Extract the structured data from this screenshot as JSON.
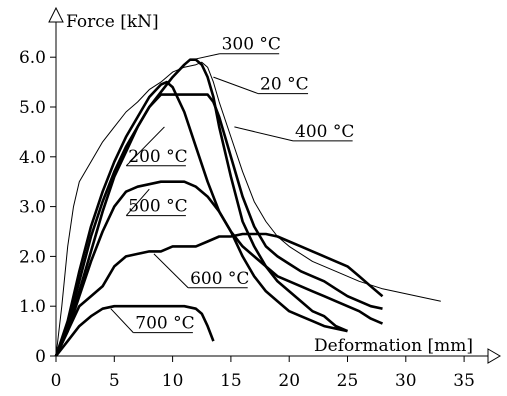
{
  "chart_data": {
    "type": "line",
    "title": "",
    "ylabel": "Force [kN]",
    "xlabel": "Deformation [mm]",
    "xlim": [
      0,
      35
    ],
    "ylim": [
      0,
      6.0
    ],
    "x_ticks": [
      0,
      5,
      10,
      15,
      20,
      25,
      30,
      35
    ],
    "y_ticks": [
      0,
      1.0,
      2.0,
      3.0,
      4.0,
      5.0,
      6.0
    ],
    "y_tick_labels": [
      "0",
      "1.0",
      "2.0",
      "3.0",
      "4.0",
      "5.0",
      "6.0"
    ],
    "grid": false,
    "series": [
      {
        "name": "20 °C",
        "stroke": "thin",
        "x": [
          0,
          0.5,
          1,
          1.5,
          2,
          3,
          4,
          5,
          6,
          7,
          8,
          9,
          10,
          11,
          12,
          12.5,
          13,
          13.5,
          14,
          15,
          16,
          17,
          18,
          19,
          20,
          22,
          24,
          26,
          28,
          30,
          32,
          33
        ],
        "y": [
          0,
          1.0,
          2.2,
          3.0,
          3.5,
          3.9,
          4.3,
          4.6,
          4.9,
          5.1,
          5.35,
          5.5,
          5.7,
          5.8,
          5.85,
          5.9,
          5.8,
          5.5,
          5.1,
          4.4,
          3.7,
          3.1,
          2.7,
          2.4,
          2.2,
          1.9,
          1.7,
          1.5,
          1.35,
          1.25,
          1.15,
          1.1
        ]
      },
      {
        "name": "300 °C",
        "stroke": "thick",
        "x": [
          0,
          1,
          2,
          3,
          4,
          5,
          6,
          7,
          8,
          9,
          10,
          11,
          11.5,
          12,
          12.5,
          13,
          13.5,
          14,
          15,
          16,
          17,
          18,
          19,
          20,
          21,
          22,
          23,
          24,
          25
        ],
        "y": [
          0,
          0.6,
          1.5,
          2.4,
          3.1,
          3.7,
          4.2,
          4.6,
          5.0,
          5.3,
          5.6,
          5.85,
          5.95,
          5.95,
          5.85,
          5.6,
          5.2,
          4.6,
          3.6,
          2.7,
          2.2,
          1.8,
          1.5,
          1.3,
          1.1,
          0.9,
          0.8,
          0.6,
          0.5
        ]
      },
      {
        "name": "400 °C",
        "stroke": "thick",
        "x": [
          0,
          1,
          2,
          3,
          4,
          5,
          6,
          7,
          8,
          9,
          10,
          11,
          12,
          13,
          13.5,
          14,
          14.5,
          15,
          16,
          17,
          18,
          19,
          20,
          21,
          22,
          23,
          24,
          25,
          26,
          27,
          28
        ],
        "y": [
          0,
          0.5,
          1.3,
          2.1,
          2.9,
          3.6,
          4.1,
          4.6,
          5.0,
          5.25,
          5.25,
          5.25,
          5.25,
          5.25,
          5.1,
          4.8,
          4.4,
          4.0,
          3.2,
          2.6,
          2.2,
          2.0,
          1.85,
          1.7,
          1.6,
          1.5,
          1.35,
          1.2,
          1.1,
          1.0,
          0.95
        ]
      },
      {
        "name": "200 °C",
        "stroke": "thick",
        "x": [
          0,
          1,
          2,
          3,
          4,
          5,
          6,
          7,
          8,
          9,
          9.5,
          10,
          11,
          12,
          13,
          14,
          15,
          16,
          17,
          18,
          19,
          20,
          21,
          22,
          23,
          24,
          25,
          26,
          27,
          28
        ],
        "y": [
          0,
          0.7,
          1.7,
          2.6,
          3.3,
          3.9,
          4.4,
          4.8,
          5.2,
          5.45,
          5.5,
          5.4,
          4.9,
          4.2,
          3.5,
          2.9,
          2.5,
          2.2,
          2.0,
          1.8,
          1.6,
          1.5,
          1.4,
          1.3,
          1.2,
          1.1,
          1.0,
          0.9,
          0.75,
          0.65
        ]
      },
      {
        "name": "500 °C",
        "stroke": "thick",
        "x": [
          0,
          1,
          2,
          3,
          4,
          5,
          6,
          7,
          8,
          9,
          10,
          11,
          12,
          13,
          14,
          15,
          16,
          17,
          18,
          19,
          20,
          21,
          22,
          23,
          24,
          25
        ],
        "y": [
          0,
          0.5,
          1.2,
          1.9,
          2.5,
          3.0,
          3.3,
          3.4,
          3.45,
          3.5,
          3.5,
          3.5,
          3.4,
          3.2,
          2.9,
          2.5,
          2.0,
          1.6,
          1.3,
          1.1,
          0.9,
          0.8,
          0.7,
          0.6,
          0.55,
          0.5
        ]
      },
      {
        "name": "600 °C",
        "stroke": "thick",
        "x": [
          0,
          1,
          2,
          3,
          4,
          5,
          6,
          7,
          8,
          9,
          10,
          11,
          12,
          13,
          14,
          15,
          16,
          17,
          18,
          19,
          20,
          21,
          22,
          23,
          24,
          25,
          26,
          27,
          28
        ],
        "y": [
          0,
          0.5,
          1.0,
          1.2,
          1.4,
          1.8,
          2.0,
          2.05,
          2.1,
          2.1,
          2.2,
          2.2,
          2.2,
          2.3,
          2.4,
          2.4,
          2.45,
          2.45,
          2.45,
          2.4,
          2.3,
          2.2,
          2.1,
          2.0,
          1.9,
          1.8,
          1.6,
          1.4,
          1.2
        ]
      },
      {
        "name": "700 °C",
        "stroke": "thick",
        "x": [
          0,
          1,
          2,
          3,
          4,
          5,
          6,
          7,
          8,
          9,
          10,
          11,
          12,
          12.5,
          13,
          13.5
        ],
        "y": [
          0,
          0.3,
          0.6,
          0.8,
          0.95,
          1.0,
          1.0,
          1.0,
          1.0,
          1.0,
          1.0,
          1.0,
          0.95,
          0.85,
          0.6,
          0.3
        ]
      }
    ],
    "labels": [
      {
        "text": "20 °C",
        "series": "20 °C",
        "at": [
          17.5,
          5.35
        ],
        "pointer": [
          13.5,
          5.6
        ]
      },
      {
        "text": "300 °C",
        "series": "300 °C",
        "at": [
          14.2,
          6.15
        ],
        "pointer": [
          11.7,
          5.95
        ]
      },
      {
        "text": "400 °C",
        "series": "400 °C",
        "at": [
          20.5,
          4.4
        ],
        "pointer": [
          15.3,
          4.6
        ]
      },
      {
        "text": "200 °C",
        "series": "200 °C",
        "at": [
          6.2,
          3.9
        ],
        "pointer": [
          9.3,
          4.6
        ]
      },
      {
        "text": "500 °C",
        "series": "500 °C",
        "at": [
          6.2,
          2.9
        ],
        "pointer": [
          8.0,
          3.35
        ]
      },
      {
        "text": "600 °C",
        "series": "600 °C",
        "at": [
          11.5,
          1.45
        ],
        "pointer": [
          8.4,
          2.05
        ]
      },
      {
        "text": "700 °C",
        "series": "700 °C",
        "at": [
          6.8,
          0.55
        ],
        "pointer": [
          4.7,
          0.95
        ]
      }
    ]
  }
}
